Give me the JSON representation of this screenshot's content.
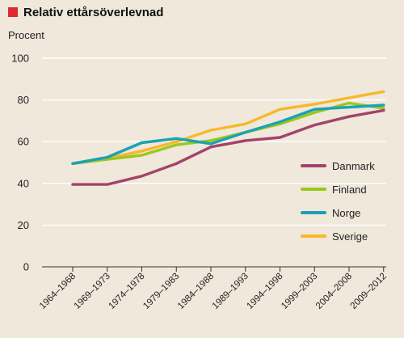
{
  "chart_data": {
    "type": "line",
    "title": "Relativ ettårsöverlevnad",
    "ylabel": "Procent",
    "xlabel": "",
    "ylim": [
      0,
      100
    ],
    "yticks": [
      0,
      20,
      40,
      60,
      80,
      100
    ],
    "grid": true,
    "legend_position": "right",
    "categories": [
      "1964–1968",
      "1969–1973",
      "1974–1978",
      "1979–1983",
      "1984–1988",
      "1989–1993",
      "1994–1998",
      "1999–2003",
      "2004–2008",
      "2009–2012"
    ],
    "series": [
      {
        "name": "Danmark",
        "color": "#a3426a",
        "values": [
          39.5,
          39.5,
          43.5,
          49.5,
          57.5,
          60.5,
          62,
          68,
          72,
          75
        ]
      },
      {
        "name": "Finland",
        "color": "#9cc61f",
        "values": [
          49.5,
          51.5,
          53.5,
          58.5,
          60.5,
          64.5,
          68.5,
          74,
          78.5,
          76
        ]
      },
      {
        "name": "Norge",
        "color": "#1aa2b3",
        "values": [
          49.5,
          52.5,
          59.5,
          61.5,
          59,
          64.5,
          69.5,
          75.5,
          76.5,
          77.5
        ]
      },
      {
        "name": "Sverige",
        "color": "#f6b92c",
        "values": [
          49.5,
          52,
          55.5,
          60,
          65.5,
          68.5,
          75.5,
          78,
          81,
          84
        ]
      }
    ]
  },
  "colors": {
    "title_marker": "#e0292f",
    "gridline": "#ffffff",
    "axis": "#333333",
    "text": "#222222",
    "background": "#efe8db"
  }
}
